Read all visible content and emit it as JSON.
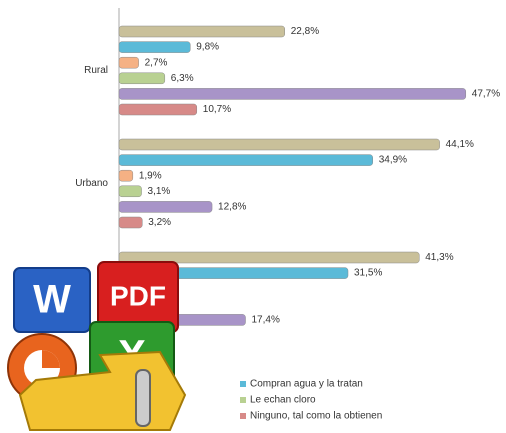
{
  "chart_data": {
    "type": "hbar",
    "categories": [
      "Rural",
      "Urbano",
      null
    ],
    "series": [
      {
        "color": "#c9c09a",
        "values": [
          22.8,
          44.1,
          41.3
        ],
        "value_labels": [
          "22,8%",
          "44,1%",
          "41,3%"
        ]
      },
      {
        "name": "Compran agua y la tratan",
        "color": "#5bbad8",
        "values": [
          9.8,
          34.9,
          31.5
        ],
        "value_labels": [
          "9,8%",
          "34,9%",
          "31,5%"
        ]
      },
      {
        "color": "#f5b184",
        "values": [
          2.7,
          1.9,
          null
        ],
        "value_labels": [
          "2,7%",
          "1,9%",
          null
        ]
      },
      {
        "name": "Le echan cloro",
        "color": "#b9d192",
        "values": [
          6.3,
          3.1,
          null
        ],
        "value_labels": [
          "6,3%",
          "3,1%",
          null
        ]
      },
      {
        "color": "#a894c8",
        "values": [
          47.7,
          12.8,
          17.4
        ],
        "value_labels": [
          "47,7%",
          "12,8%",
          "17,4%"
        ]
      },
      {
        "name": "Ninguno, tal como la obtienen",
        "color": "#d78a88",
        "values": [
          10.7,
          3.2,
          null
        ],
        "value_labels": [
          "10,7%",
          "3,2%",
          null
        ]
      }
    ]
  }
}
